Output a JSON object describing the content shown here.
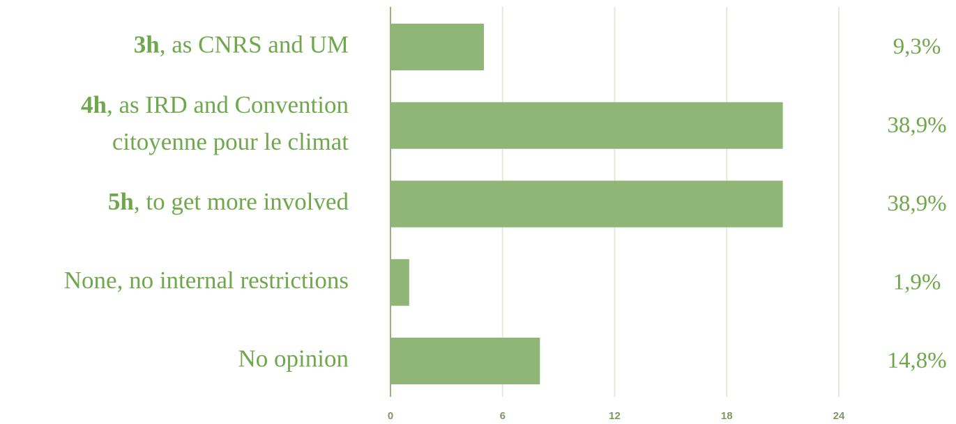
{
  "chart_data": {
    "type": "hbar",
    "categories": [
      {
        "bold": "3h",
        "lines": [
          ", as CNRS and UM"
        ]
      },
      {
        "bold": "4h",
        "lines": [
          ", as IRD and Convention",
          "citoyenne pour le climat"
        ]
      },
      {
        "bold": "5h",
        "lines": [
          ", to get more involved"
        ]
      },
      {
        "lines": [
          "None, no internal restrictions"
        ]
      },
      {
        "lines": [
          "No opinion"
        ]
      }
    ],
    "values": [
      5,
      21,
      21,
      1,
      8
    ],
    "percent_labels": [
      "9,3%",
      "38,9%",
      "38,9%",
      "1,9%",
      "14,8%"
    ],
    "color": "#8fb676",
    "xlim": [
      0,
      24
    ],
    "xticks": [
      0,
      6,
      12,
      18,
      24
    ],
    "grid": true
  }
}
